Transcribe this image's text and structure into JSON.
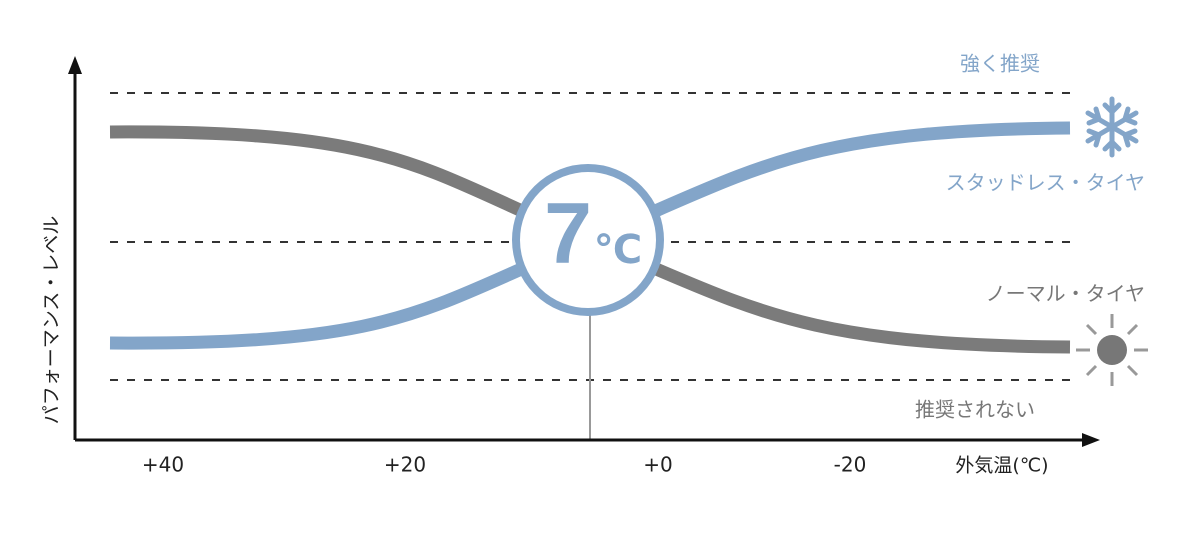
{
  "axes": {
    "y_label": "パフォーマンス・レベル",
    "x_label": "外気温(℃)",
    "x_ticks": [
      "+40",
      "+20",
      "+0",
      "-20"
    ]
  },
  "levels": {
    "top": "強く推奨",
    "bottom": "推奨されない"
  },
  "series": {
    "studless": "スタッドレス・タイヤ",
    "normal": "ノーマル・タイヤ"
  },
  "badge": {
    "number": "7",
    "unit": "℃"
  }
}
